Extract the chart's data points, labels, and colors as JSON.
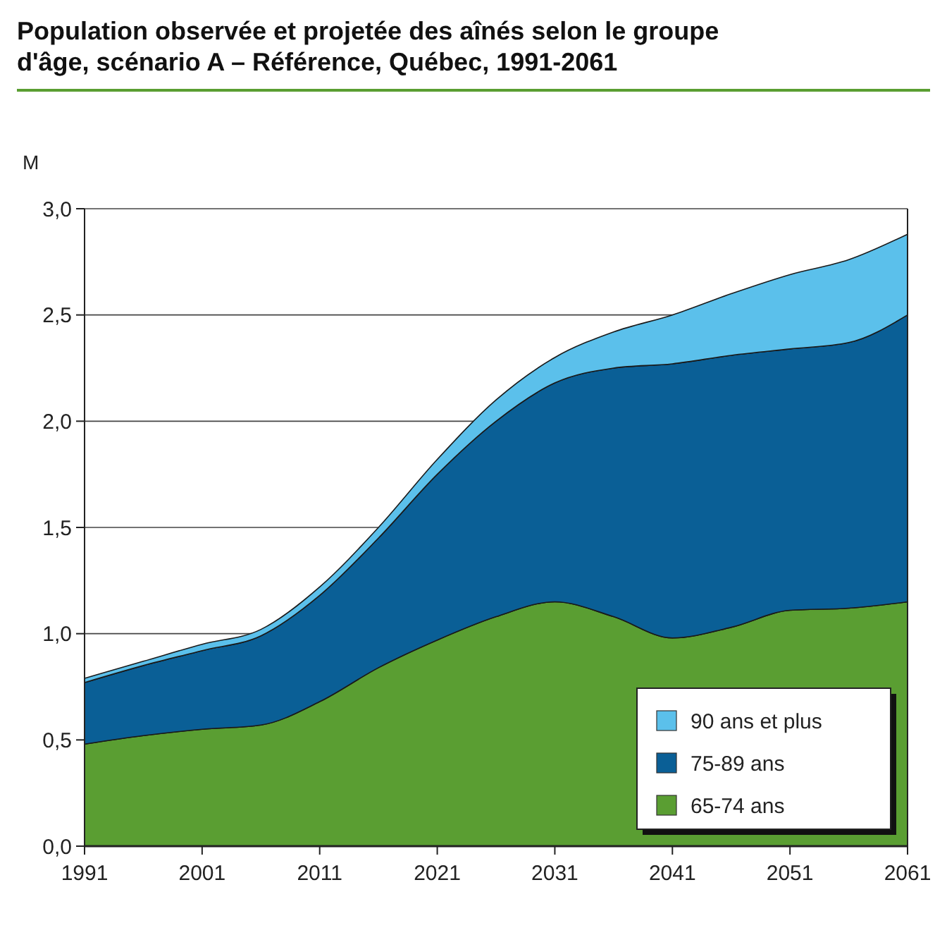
{
  "chart_data": {
    "type": "area",
    "stacked": true,
    "title": "Population observée et projetée des aînés selon le groupe d'âge, scénario A – Référence, Québec, 1991-2061",
    "ylabel": "M",
    "x": [
      1991,
      1996,
      2001,
      2006,
      2011,
      2016,
      2021,
      2026,
      2031,
      2036,
      2041,
      2046,
      2051,
      2056,
      2061
    ],
    "series": [
      {
        "name": "65-74 ans",
        "color": "#5a9e32",
        "values": [
          0.48,
          0.52,
          0.55,
          0.57,
          0.68,
          0.84,
          0.97,
          1.08,
          1.15,
          1.08,
          0.98,
          1.03,
          1.11,
          1.12,
          1.15
        ]
      },
      {
        "name": "75-89 ans",
        "color": "#0a5f96",
        "values": [
          0.29,
          0.33,
          0.37,
          0.42,
          0.5,
          0.61,
          0.78,
          0.92,
          1.03,
          1.17,
          1.29,
          1.28,
          1.23,
          1.25,
          1.35
        ]
      },
      {
        "name": "90 ans et plus",
        "color": "#5bc0eb",
        "values": [
          0.02,
          0.02,
          0.03,
          0.03,
          0.04,
          0.05,
          0.07,
          0.1,
          0.12,
          0.17,
          0.23,
          0.29,
          0.35,
          0.39,
          0.38
        ]
      }
    ],
    "xlim": [
      1991,
      2061
    ],
    "xticks": [
      1991,
      2001,
      2011,
      2021,
      2031,
      2041,
      2051,
      2061
    ],
    "ylim": [
      0,
      3
    ],
    "yticks": [
      {
        "value": 0,
        "label": "0,0"
      },
      {
        "value": 0.5,
        "label": "0,5"
      },
      {
        "value": 1,
        "label": "1,0"
      },
      {
        "value": 1.5,
        "label": "1,5"
      },
      {
        "value": 2,
        "label": "2,0"
      },
      {
        "value": 2.5,
        "label": "2,5"
      },
      {
        "value": 3,
        "label": "3,0"
      }
    ],
    "grid": "y",
    "legend": "bottom right"
  }
}
